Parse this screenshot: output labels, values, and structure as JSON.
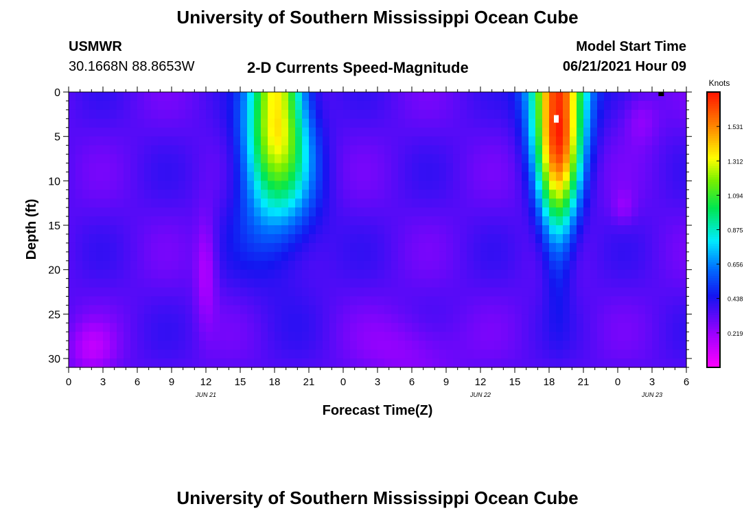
{
  "header": {
    "title_top": "University of Southern Mississippi Ocean Cube",
    "station": "USMWR",
    "coords": "30.1668N  88.8653W",
    "subtitle": "2-D Currents Speed-Magnitude",
    "model_start_label": "Model Start Time",
    "model_start_value": "06/21/2021 Hour 09"
  },
  "footer": {
    "title_bottom": "University of Southern Mississippi Ocean Cube"
  },
  "chart_data": {
    "type": "heatmap",
    "title": "2-D Currents Speed-Magnitude",
    "xlabel": "Forecast Time(Z)",
    "ylabel": "Depth (ft)",
    "x_range_hours": [
      0,
      54
    ],
    "x_ticks": [
      "0",
      "3",
      "6",
      "9",
      "12",
      "15",
      "18",
      "21",
      "0",
      "3",
      "6",
      "9",
      "12",
      "15",
      "18",
      "21",
      "0",
      "3",
      "6"
    ],
    "date_labels": [
      {
        "text": "JUN 21",
        "hour": 12
      },
      {
        "text": "JUN 22",
        "hour": 36
      },
      {
        "text": "JUN 23",
        "hour": 51
      }
    ],
    "y_range_ft": [
      0,
      31
    ],
    "y_ticks": [
      0,
      5,
      10,
      15,
      20,
      25,
      30
    ],
    "colorbar": {
      "label": "Knots",
      "ticks": [
        "0.219",
        "0.438",
        "0.656",
        "0.875",
        "1.094",
        "1.312",
        "1.531"
      ],
      "range": [
        0,
        1.75
      ]
    },
    "features": [
      {
        "description": "surface jet",
        "center_hour": 18,
        "max_depth_ft": 17,
        "peak_knots": 1.35
      },
      {
        "description": "surface jet",
        "center_hour": 42.5,
        "max_depth_ft": 23,
        "peak_knots": 1.75,
        "peak_depth_ft": 3
      }
    ]
  }
}
